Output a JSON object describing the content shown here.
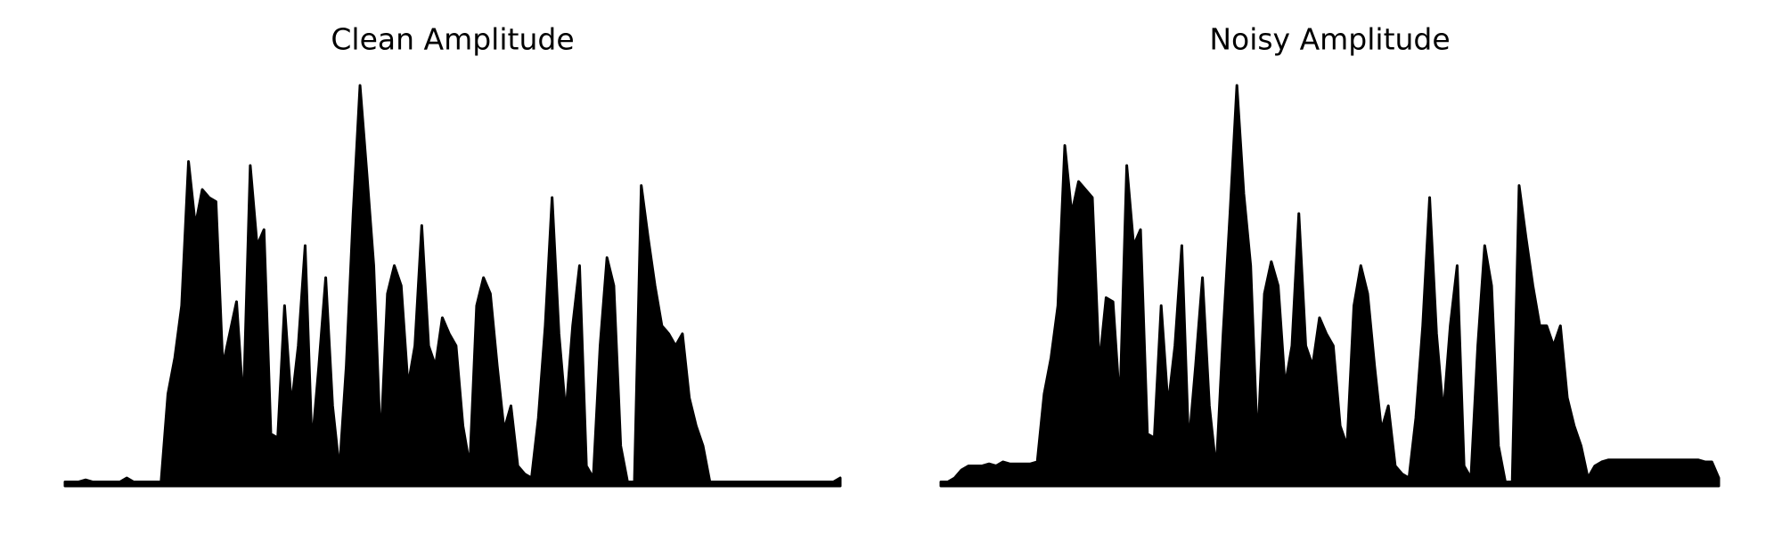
{
  "chart_data": [
    {
      "type": "area",
      "title": "Clean Amplitude",
      "color": "#000000",
      "values": [
        0.01,
        0.01,
        0.01,
        0.015,
        0.01,
        0.01,
        0.01,
        0.01,
        0.01,
        0.02,
        0.01,
        0.01,
        0.01,
        0.01,
        0.01,
        0.23,
        0.32,
        0.45,
        0.81,
        0.65,
        0.74,
        0.72,
        0.71,
        0.3,
        0.38,
        0.46,
        0.2,
        0.8,
        0.6,
        0.64,
        0.13,
        0.12,
        0.45,
        0.2,
        0.35,
        0.6,
        0.1,
        0.3,
        0.52,
        0.2,
        0.04,
        0.3,
        0.68,
        1.0,
        0.78,
        0.55,
        0.1,
        0.48,
        0.55,
        0.5,
        0.25,
        0.35,
        0.65,
        0.35,
        0.3,
        0.42,
        0.38,
        0.35,
        0.15,
        0.05,
        0.45,
        0.52,
        0.48,
        0.3,
        0.14,
        0.2,
        0.05,
        0.03,
        0.02,
        0.17,
        0.4,
        0.72,
        0.38,
        0.18,
        0.4,
        0.55,
        0.05,
        0.02,
        0.35,
        0.57,
        0.5,
        0.1,
        0.01,
        0.01,
        0.75,
        0.62,
        0.5,
        0.4,
        0.38,
        0.35,
        0.38,
        0.22,
        0.15,
        0.1,
        0.01,
        0.01,
        0.01,
        0.01,
        0.01,
        0.01,
        0.01,
        0.01,
        0.01,
        0.01,
        0.01,
        0.01,
        0.01,
        0.01,
        0.01,
        0.01,
        0.01,
        0.01,
        0.01,
        0.02
      ]
    },
    {
      "type": "area",
      "title": "Noisy Amplitude",
      "color": "#000000",
      "values": [
        0.01,
        0.01,
        0.02,
        0.04,
        0.05,
        0.05,
        0.05,
        0.055,
        0.05,
        0.06,
        0.055,
        0.055,
        0.055,
        0.055,
        0.06,
        0.23,
        0.32,
        0.45,
        0.85,
        0.68,
        0.76,
        0.74,
        0.72,
        0.3,
        0.47,
        0.46,
        0.2,
        0.8,
        0.6,
        0.64,
        0.13,
        0.12,
        0.45,
        0.2,
        0.35,
        0.6,
        0.1,
        0.3,
        0.52,
        0.2,
        0.04,
        0.38,
        0.68,
        1.0,
        0.73,
        0.55,
        0.1,
        0.48,
        0.56,
        0.5,
        0.25,
        0.35,
        0.68,
        0.35,
        0.3,
        0.42,
        0.38,
        0.35,
        0.15,
        0.1,
        0.45,
        0.55,
        0.48,
        0.3,
        0.14,
        0.2,
        0.05,
        0.03,
        0.02,
        0.17,
        0.4,
        0.72,
        0.38,
        0.18,
        0.4,
        0.55,
        0.05,
        0.02,
        0.35,
        0.6,
        0.5,
        0.1,
        0.01,
        0.01,
        0.75,
        0.62,
        0.5,
        0.4,
        0.4,
        0.35,
        0.4,
        0.22,
        0.15,
        0.1,
        0.02,
        0.05,
        0.06,
        0.065,
        0.065,
        0.065,
        0.065,
        0.065,
        0.065,
        0.065,
        0.065,
        0.065,
        0.065,
        0.065,
        0.065,
        0.065,
        0.065,
        0.06,
        0.06,
        0.02
      ]
    }
  ]
}
